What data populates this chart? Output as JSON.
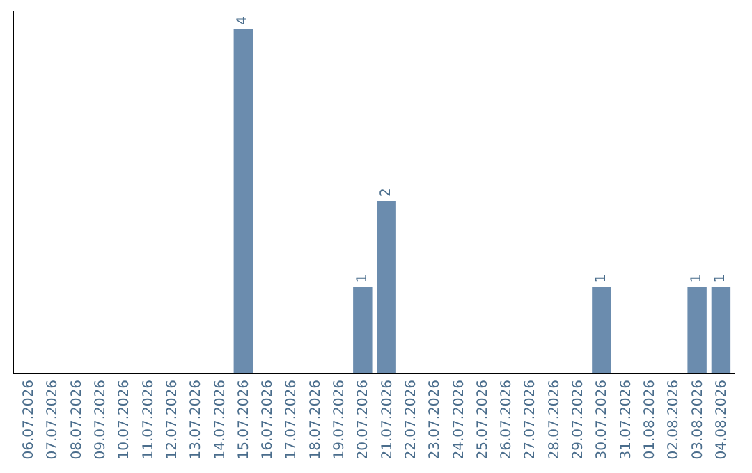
{
  "chart_data": {
    "type": "bar",
    "categories": [
      "06.07.2026",
      "07.07.2026",
      "08.07.2026",
      "09.07.2026",
      "10.07.2026",
      "11.07.2026",
      "12.07.2026",
      "13.07.2026",
      "14.07.2026",
      "15.07.2026",
      "16.07.2026",
      "17.07.2026",
      "18.07.2026",
      "19.07.2026",
      "20.07.2026",
      "21.07.2026",
      "22.07.2026",
      "23.07.2026",
      "24.07.2026",
      "25.07.2026",
      "26.07.2026",
      "27.07.2026",
      "28.07.2026",
      "29.07.2026",
      "30.07.2026",
      "31.07.2026",
      "01.08.2026",
      "02.08.2026",
      "03.08.2026",
      "04.08.2026"
    ],
    "values": [
      0,
      0,
      0,
      0,
      0,
      0,
      0,
      0,
      0,
      4,
      0,
      0,
      0,
      0,
      1,
      2,
      0,
      0,
      0,
      0,
      0,
      0,
      0,
      0,
      1,
      0,
      0,
      0,
      1,
      1
    ],
    "value_labels": [
      null,
      null,
      null,
      null,
      null,
      null,
      null,
      null,
      null,
      "4",
      null,
      null,
      null,
      null,
      "1",
      "2",
      null,
      null,
      null,
      null,
      null,
      null,
      null,
      null,
      "1",
      null,
      null,
      null,
      "1",
      "1"
    ],
    "color": "#6b8cae",
    "tick_labels": "x"
  }
}
